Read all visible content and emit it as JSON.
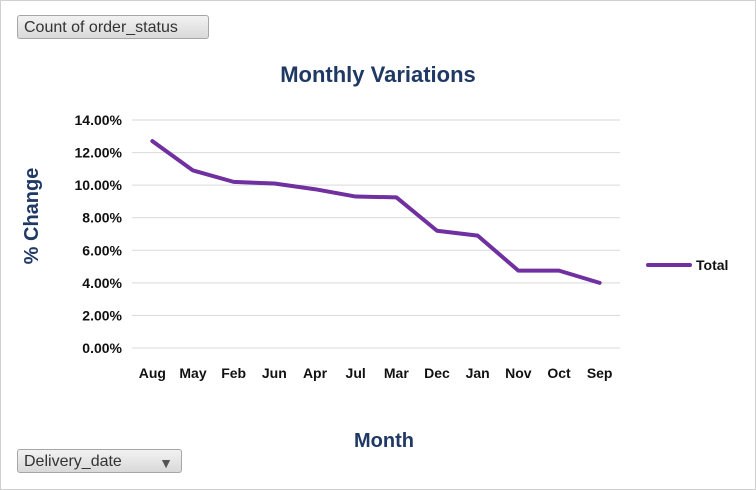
{
  "fields": {
    "value_field": "Count of order_status",
    "axis_field": "Delivery_date",
    "axis_field_icon": "filter-dropdown-icon"
  },
  "chart_data": {
    "type": "line",
    "title": "Monthly Variations",
    "xlabel": "Month",
    "ylabel": "% Change",
    "categories": [
      "Aug",
      "May",
      "Feb",
      "Jun",
      "Apr",
      "Jul",
      "Mar",
      "Dec",
      "Jan",
      "Nov",
      "Oct",
      "Sep"
    ],
    "series": [
      {
        "name": "Total",
        "values": [
          12.7,
          10.9,
          10.2,
          10.1,
          9.75,
          9.3,
          9.25,
          7.2,
          6.9,
          4.75,
          4.75,
          4.0
        ],
        "color": "#7030a0"
      }
    ],
    "ylim": [
      0,
      14
    ],
    "yticks": [
      0,
      2,
      4,
      6,
      8,
      10,
      12,
      14
    ],
    "ytick_labels": [
      "0.00%",
      "2.00%",
      "4.00%",
      "6.00%",
      "8.00%",
      "10.00%",
      "12.00%",
      "14.00%"
    ],
    "grid": true,
    "legend_position": "right"
  }
}
